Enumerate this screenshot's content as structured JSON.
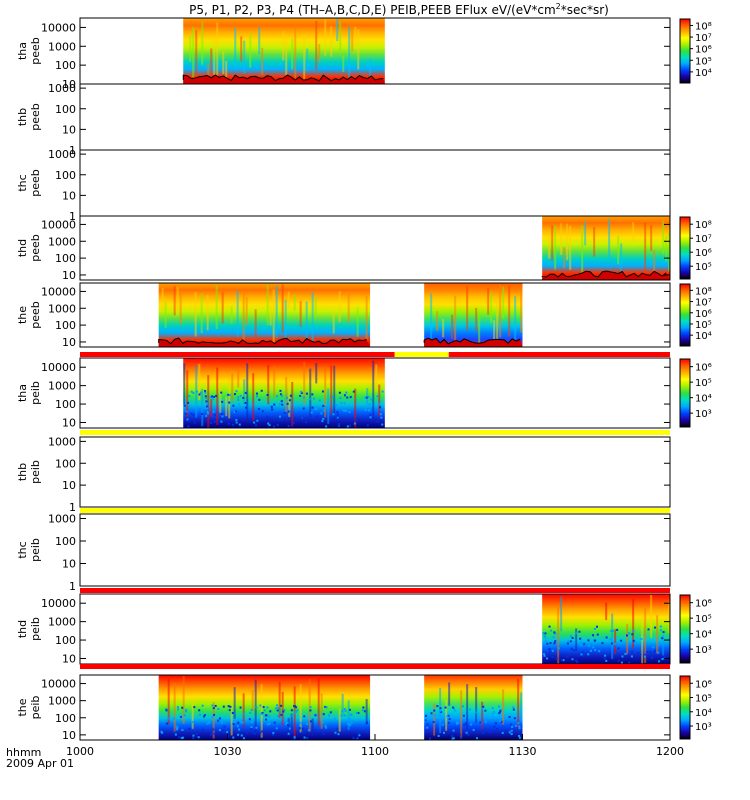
{
  "chart_data": {
    "type": "heatmap",
    "title": "P5, P1, P2, P3, P4 (TH–A,B,C,D,E) PEIB,PEEB EFlux eV/(eV*cm²*sec*sr)",
    "title_parts": {
      "main": "P5, P1, P2, P3, P4 (TH–A,B,C,D,E) PEIB,PEEB EFlux eV/(eV*cm",
      "sup": "2",
      "tail": "*sec*sr)"
    },
    "x_axis": {
      "label": "hhmm",
      "date": "2009 Apr 01",
      "range_min": [
        0,
        120
      ],
      "ticks": [
        {
          "t": 0,
          "label": "1000"
        },
        {
          "t": 30,
          "label": "1030"
        },
        {
          "t": 60,
          "label": "1100"
        },
        {
          "t": 90,
          "label": "1130"
        },
        {
          "t": 120,
          "label": "1200"
        }
      ]
    },
    "panels": [
      {
        "probe": "tha",
        "product": "peeb",
        "y_ticks": [
          "10000",
          "1000",
          "100",
          "10"
        ],
        "ylog": [
          1,
          4.5
        ],
        "data_intervals_min": [
          [
            21,
            62
          ]
        ],
        "colorbar": {
          "ticks": [
            "10⁸",
            "10⁷",
            "10⁶",
            "10⁵",
            "10⁴"
          ]
        },
        "spectrum_profile": "electron"
      },
      {
        "probe": "thb",
        "product": "peeb",
        "y_ticks": [
          "1000",
          "100",
          "10",
          "1"
        ],
        "ylog": [
          0,
          3.2
        ],
        "data_intervals_min": [],
        "colorbar": null
      },
      {
        "probe": "thc",
        "product": "peeb",
        "y_ticks": [
          "1000",
          "100",
          "10",
          "1"
        ],
        "ylog": [
          0,
          3.2
        ],
        "data_intervals_min": [],
        "colorbar": null
      },
      {
        "probe": "thd",
        "product": "peeb",
        "y_ticks": [
          "10000",
          "1000",
          "100",
          "10"
        ],
        "ylog": [
          0.7,
          4.5
        ],
        "data_intervals_min": [
          [
            94,
            120
          ]
        ],
        "colorbar": {
          "ticks": [
            "10⁸",
            "10⁷",
            "10⁶",
            "10⁵"
          ]
        },
        "spectrum_profile": "electron"
      },
      {
        "probe": "the",
        "product": "peeb",
        "y_ticks": [
          "10000",
          "1000",
          "100",
          "10"
        ],
        "ylog": [
          0.7,
          4.5
        ],
        "data_intervals_min": [
          [
            16,
            59
          ],
          [
            70,
            90
          ]
        ],
        "colorbar": {
          "ticks": [
            "10⁸",
            "10⁷",
            "10⁶",
            "10⁵",
            "10⁴"
          ]
        },
        "spectrum_profile": "electron"
      },
      {
        "probe": "tha",
        "product": "peib",
        "y_ticks": [
          "10000",
          "1000",
          "100",
          "10"
        ],
        "ylog": [
          0.7,
          4.5
        ],
        "data_intervals_min": [
          [
            21,
            62
          ]
        ],
        "colorbar": {
          "ticks": [
            "10⁶",
            "10⁵",
            "10⁴",
            "10³"
          ]
        },
        "spectrum_profile": "ion"
      },
      {
        "probe": "thb",
        "product": "peib",
        "y_ticks": [
          "1000",
          "100",
          "10",
          "1"
        ],
        "ylog": [
          0,
          3.2
        ],
        "data_intervals_min": [],
        "colorbar": null
      },
      {
        "probe": "thc",
        "product": "peib",
        "y_ticks": [
          "1000",
          "100",
          "10",
          "1"
        ],
        "ylog": [
          0,
          3.2
        ],
        "data_intervals_min": [],
        "colorbar": null
      },
      {
        "probe": "thd",
        "product": "peib",
        "y_ticks": [
          "10000",
          "1000",
          "100",
          "10"
        ],
        "ylog": [
          0.7,
          4.5
        ],
        "data_intervals_min": [
          [
            94,
            120
          ]
        ],
        "colorbar": {
          "ticks": [
            "10⁶",
            "10⁵",
            "10⁴",
            "10³"
          ]
        },
        "spectrum_profile": "ion"
      },
      {
        "probe": "the",
        "product": "peib",
        "y_ticks": [
          "10000",
          "1000",
          "100",
          "10"
        ],
        "ylog": [
          0.7,
          4.5
        ],
        "data_intervals_min": [
          [
            16,
            59
          ],
          [
            70,
            90
          ]
        ],
        "colorbar": {
          "ticks": [
            "10⁶",
            "10⁵",
            "10⁴",
            "10³"
          ]
        },
        "spectrum_profile": "ion"
      }
    ],
    "status_bars": [
      {
        "after_panel": 4,
        "segments": [
          {
            "t0": 0,
            "t1": 64,
            "color": "#ff0000"
          },
          {
            "t0": 64,
            "t1": 75,
            "color": "#ffff00"
          },
          {
            "t0": 75,
            "t1": 120,
            "color": "#ff0000"
          }
        ]
      },
      {
        "after_panel": 5,
        "segments": [
          {
            "t0": 0,
            "t1": 120,
            "color": "#ffff00"
          }
        ]
      },
      {
        "after_panel": 6,
        "segments": [
          {
            "t0": 0,
            "t1": 120,
            "color": "#ffff00"
          }
        ]
      },
      {
        "after_panel": 7,
        "segments": [
          {
            "t0": 0,
            "t1": 120,
            "color": "#ff0000"
          }
        ]
      },
      {
        "after_panel": 8,
        "segments": [
          {
            "t0": 0,
            "t1": 120,
            "color": "#ff0000"
          }
        ]
      }
    ],
    "colormap": [
      "#000000",
      "#1a00a8",
      "#0040ff",
      "#00a8ff",
      "#00e0c0",
      "#30e040",
      "#a8f000",
      "#ffff00",
      "#ffb000",
      "#ff6000",
      "#ff0000"
    ],
    "grid": false,
    "legend": "colorbars at right"
  }
}
